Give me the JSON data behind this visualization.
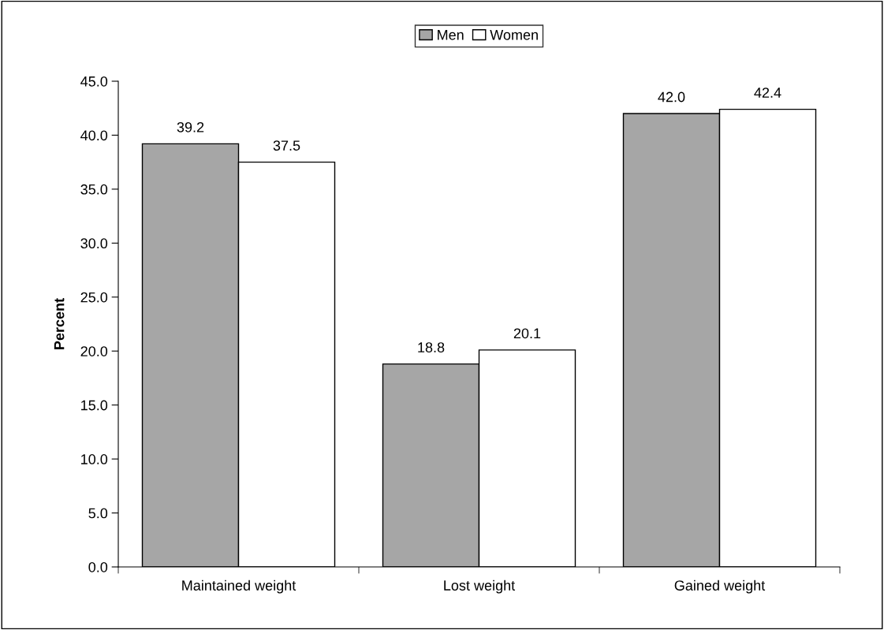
{
  "chart_data": {
    "type": "bar",
    "ylabel": "Percent",
    "categories": [
      "Maintained weight",
      "Lost weight",
      "Gained weight"
    ],
    "series": [
      {
        "name": "Men",
        "color": "#a6a6a6",
        "values": [
          39.2,
          18.8,
          42.0
        ],
        "value_labels": [
          "39.2",
          "18.8",
          "42.0"
        ]
      },
      {
        "name": "Women",
        "color": "#ffffff",
        "values": [
          37.5,
          20.1,
          42.4
        ],
        "value_labels": [
          "37.5",
          "20.1",
          "42.4"
        ]
      }
    ],
    "ylim": [
      0,
      45
    ],
    "yticks": [
      {
        "value": 0,
        "label": "0.0"
      },
      {
        "value": 5,
        "label": "5.0"
      },
      {
        "value": 10,
        "label": "10.0"
      },
      {
        "value": 15,
        "label": "15.0"
      },
      {
        "value": 20,
        "label": "20.0"
      },
      {
        "value": 25,
        "label": "25.0"
      },
      {
        "value": 30,
        "label": "30.0"
      },
      {
        "value": 35,
        "label": "35.0"
      },
      {
        "value": 40,
        "label": "40.0"
      },
      {
        "value": 45,
        "label": "45.0"
      }
    ],
    "grid": false,
    "legend": "top"
  }
}
